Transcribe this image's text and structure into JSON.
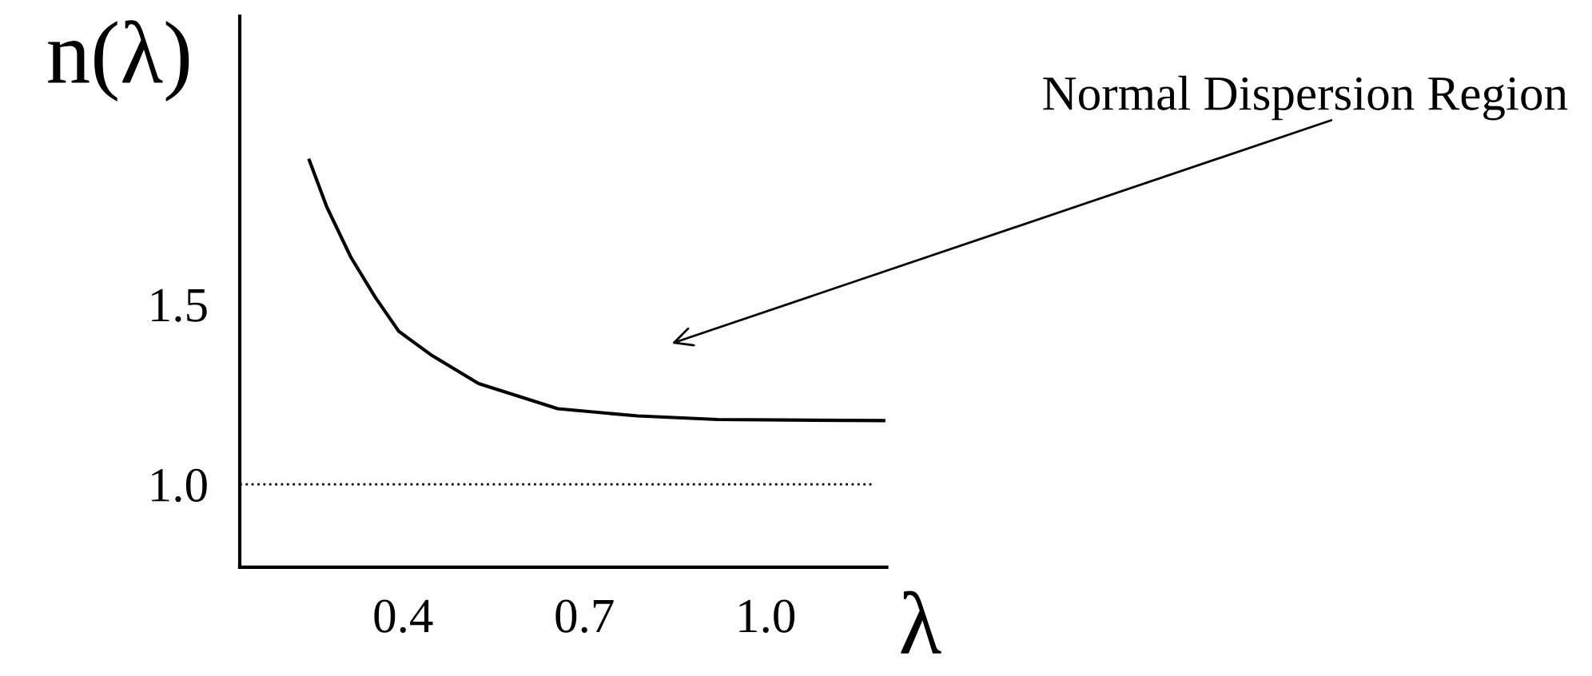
{
  "chart_data": {
    "type": "line",
    "xlabel": "λ",
    "ylabel": "n(λ)",
    "x": [
      0.245,
      0.274,
      0.314,
      0.354,
      0.393,
      0.446,
      0.525,
      0.656,
      0.788,
      0.92,
      1.195
    ],
    "series": [
      {
        "color": "#000000",
        "values": [
          1.9,
          1.77,
          1.63,
          1.52,
          1.425,
          1.36,
          1.28,
          1.21,
          1.19,
          1.18,
          1.177
        ]
      }
    ],
    "xlim": [
      0.13,
      1.2
    ],
    "ylim": [
      0.77,
      2.3
    ],
    "xticks": [
      0.4,
      0.7,
      {
        "value": 1,
        "label": "1.0"
      }
    ],
    "yticks": [
      1.5,
      {
        "value": 1,
        "label": "1.0"
      }
    ],
    "ref_lines": [
      {
        "axis": "y",
        "value": 1.0,
        "color": "#000000",
        "line_style": "dotted"
      }
    ],
    "annotations": [
      "Normal Dispersion Region"
    ],
    "grid": false,
    "legend": false,
    "marker": "none",
    "line_style": "solid"
  }
}
